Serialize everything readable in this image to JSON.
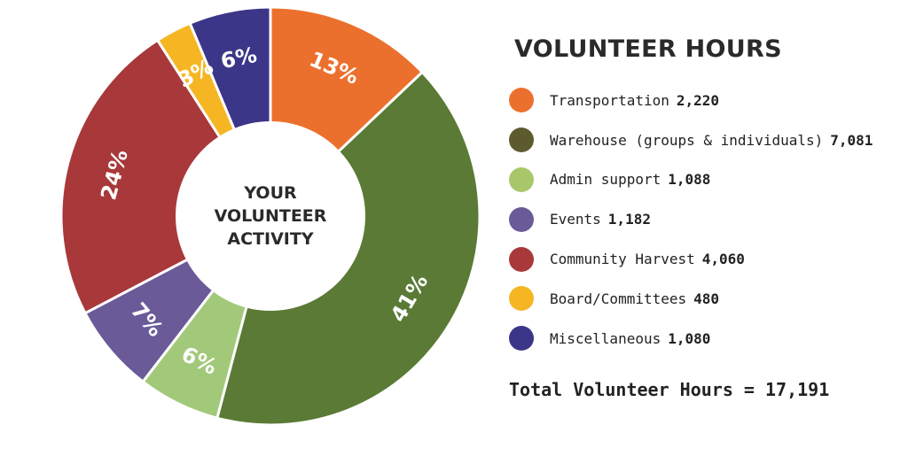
{
  "chart_data": {
    "type": "pie",
    "title": "VOLUNTEER HOURS",
    "center_label": [
      "YOUR",
      "VOLUNTEER",
      "ACTIVITY"
    ],
    "categories": [
      "Transportation",
      "Warehouse (groups & individuals)",
      "Admin support",
      "Events",
      "Community Harvest",
      "Board/Committees",
      "Miscellaneous"
    ],
    "values": [
      2220,
      7081,
      1088,
      1182,
      4060,
      480,
      1080
    ],
    "value_labels": [
      "2,220",
      "7,081",
      "1,088",
      "1,182",
      "4,060",
      "480",
      "1,080"
    ],
    "percent_labels": [
      "13%",
      "41%",
      "6%",
      "7%",
      "24%",
      "3%",
      "6%"
    ],
    "colors": [
      "#ec702d",
      "#5a7a35",
      "#a2c97a",
      "#6a5a98",
      "#a8383a",
      "#f6b624",
      "#3c3689"
    ],
    "legend_colors": [
      "#ec702d",
      "#5e5a2f",
      "#a9c76a",
      "#6a5a98",
      "#a8383a",
      "#f6b624",
      "#3c3689"
    ],
    "total_label": "Total Volunteer Hours = 17,191",
    "legend_position": "right"
  }
}
